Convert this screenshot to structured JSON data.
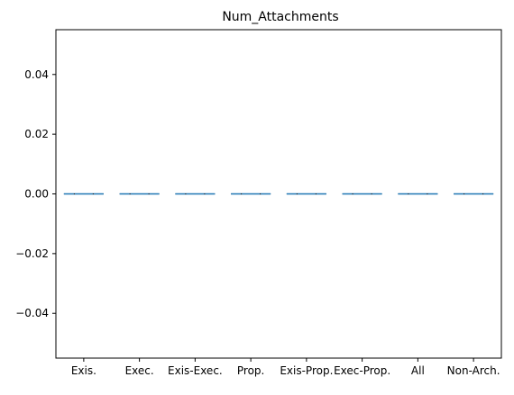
{
  "chart_data": {
    "type": "box",
    "title": "Num_Attachments",
    "xlabel": "",
    "ylabel": "",
    "categories": [
      "Exis.",
      "Exec.",
      "Exis-Exec.",
      "Prop.",
      "Exis-Prop.",
      "Exec-Prop.",
      "All",
      "Non-Arch."
    ],
    "values": [
      0,
      0,
      0,
      0,
      0,
      0,
      0,
      0
    ],
    "ylim": [
      -0.055,
      0.055
    ],
    "yticks": [
      -0.04,
      -0.02,
      0.0,
      0.02,
      0.04
    ],
    "ytick_labels": [
      "−0.04",
      "−0.02",
      "0.00",
      "0.02",
      "0.04"
    ],
    "grid": false,
    "colors": {
      "median": "#1f77b4",
      "axes": "#000000"
    }
  }
}
